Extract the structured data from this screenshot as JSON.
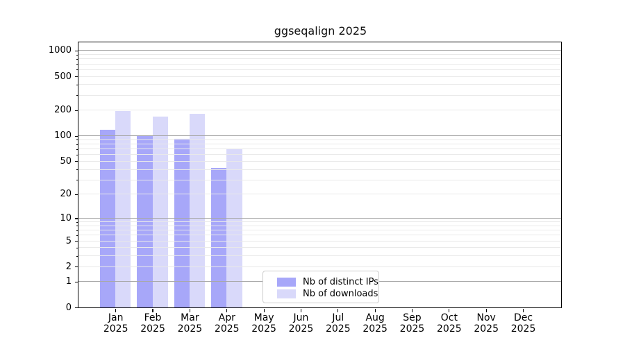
{
  "chart_data": {
    "type": "bar",
    "title": "ggseqalign 2025",
    "year": "2025",
    "months": [
      "Jan",
      "Feb",
      "Mar",
      "Apr",
      "May",
      "Jun",
      "Jul",
      "Aug",
      "Sep",
      "Oct",
      "Nov",
      "Dec"
    ],
    "categories": [
      "Jan 2025",
      "Feb 2025",
      "Mar 2025",
      "Apr 2025",
      "May 2025",
      "Jun 2025",
      "Jul 2025",
      "Aug 2025",
      "Sep 2025",
      "Oct 2025",
      "Nov 2025",
      "Dec 2025"
    ],
    "series": [
      {
        "name": "Nb of distinct IPs",
        "color": "#a7a7f9",
        "values": [
          118,
          100,
          93,
          42,
          null,
          null,
          null,
          null,
          null,
          null,
          null,
          null
        ]
      },
      {
        "name": "Nb of downloads",
        "color": "#d9d9fa",
        "values": [
          195,
          170,
          182,
          70,
          null,
          null,
          null,
          null,
          null,
          null,
          null,
          null
        ]
      }
    ],
    "y_ticks": [
      0,
      1,
      2,
      5,
      10,
      20,
      50,
      100,
      200,
      500,
      1000
    ],
    "ylim": [
      0,
      1250
    ],
    "scale": "log10(value+1)",
    "grid": {
      "major_at": [
        1,
        10,
        100,
        1000
      ],
      "minor": "2-9 per decade",
      "major_color": "#a8a8a8",
      "minor_color": "#e9e9e9"
    },
    "xlabel": "",
    "ylabel": "",
    "legend_position": "bottom-center-inside",
    "colors": {
      "axis": "#000000",
      "legend_border": "#cccccc",
      "background": "#ffffff"
    }
  }
}
